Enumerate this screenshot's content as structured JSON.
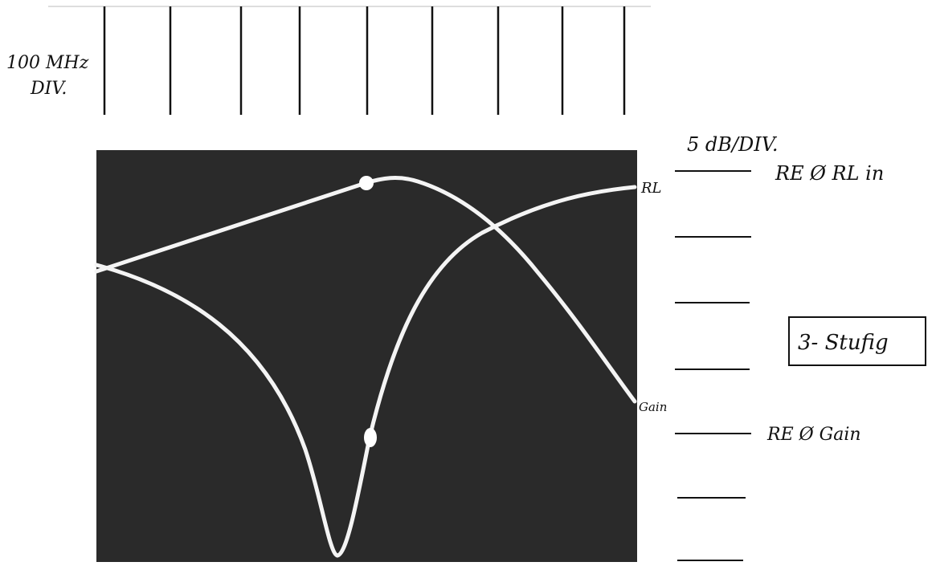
{
  "header": {
    "frequency_scale": "100 MHz",
    "frequency_unit": "DIV."
  },
  "level_scale": "5 dB/DIV.",
  "traces": {
    "rl": "RL",
    "gain": "Gain"
  },
  "references": {
    "rl": "RE Ø RL in",
    "gain": "RE Ø Gain"
  },
  "note": "3- Stufig"
}
